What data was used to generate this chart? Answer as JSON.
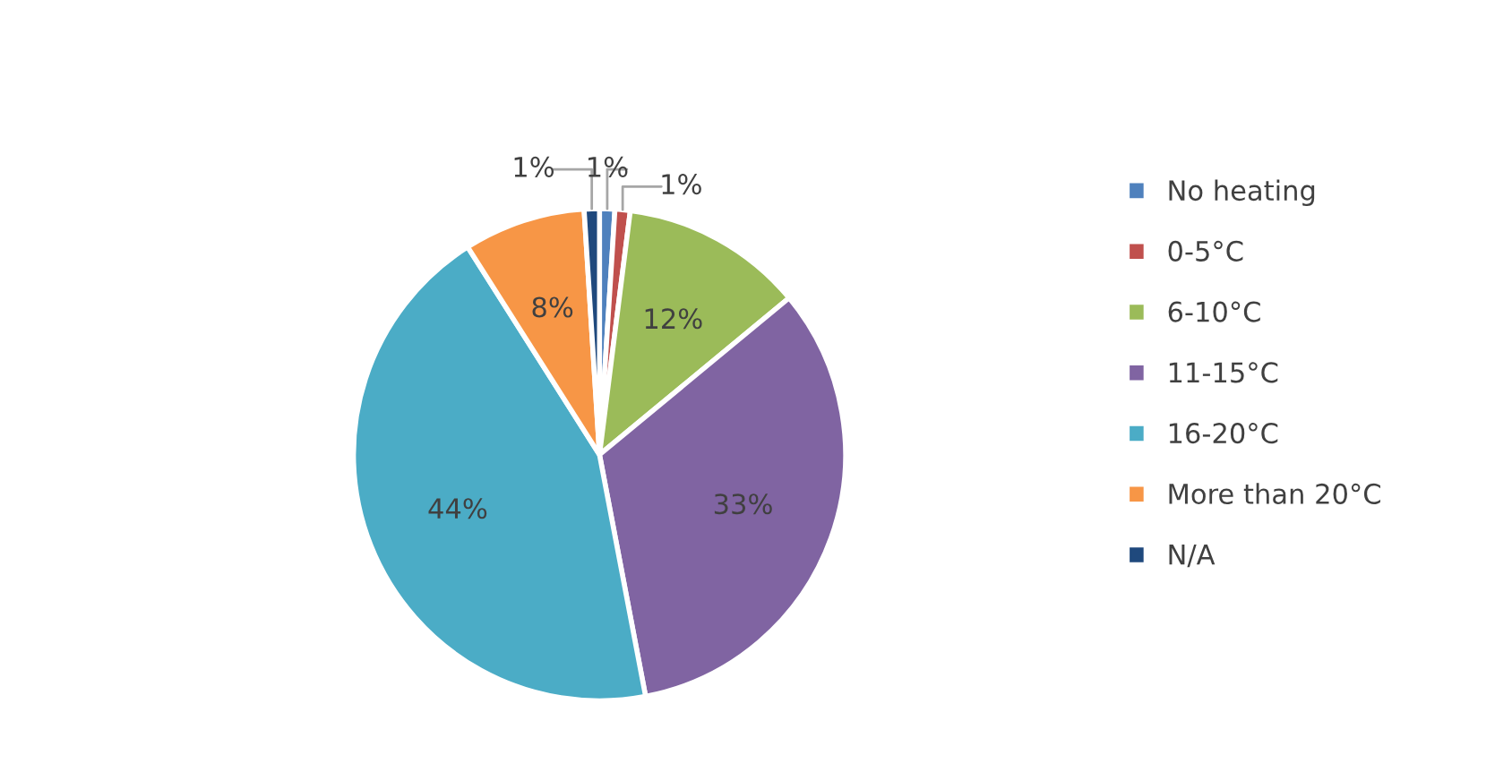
{
  "chart_data": {
    "type": "pie",
    "categories": [
      "No heating",
      "0-5°C",
      "6-10°C",
      "11-15°C",
      "16-20°C",
      "More than 20°C",
      "N/A"
    ],
    "values": [
      1,
      1,
      12,
      33,
      44,
      8,
      1
    ],
    "colors": [
      "#4f81bd",
      "#c0504d",
      "#9bbb59",
      "#8064a2",
      "#4bacc6",
      "#f79646",
      "#1f497d"
    ],
    "value_labels": [
      "1%",
      "1%",
      "12%",
      "33%",
      "44%",
      "8%",
      "1%"
    ],
    "legend": "right"
  }
}
